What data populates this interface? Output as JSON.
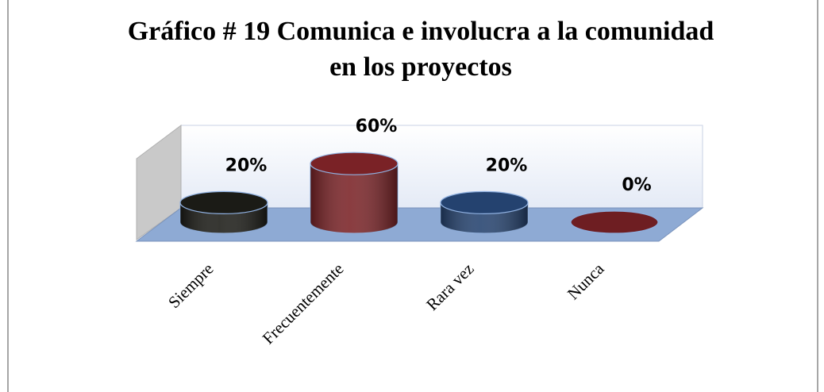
{
  "chart_data": {
    "type": "cylinder",
    "title": [
      "Gráfico # 19 Comunica e involucra a la comunidad",
      "en los proyectos"
    ],
    "categories": [
      "Siempre",
      "Frecuentemente",
      "Rara vez",
      "Nunca"
    ],
    "values": [
      20,
      60,
      20,
      0
    ],
    "value_labels": [
      "20%",
      "60%",
      "20%",
      "0%"
    ],
    "colors": [
      "#1b1b16",
      "#7a2226",
      "#24426f",
      "#6e1e22"
    ]
  }
}
